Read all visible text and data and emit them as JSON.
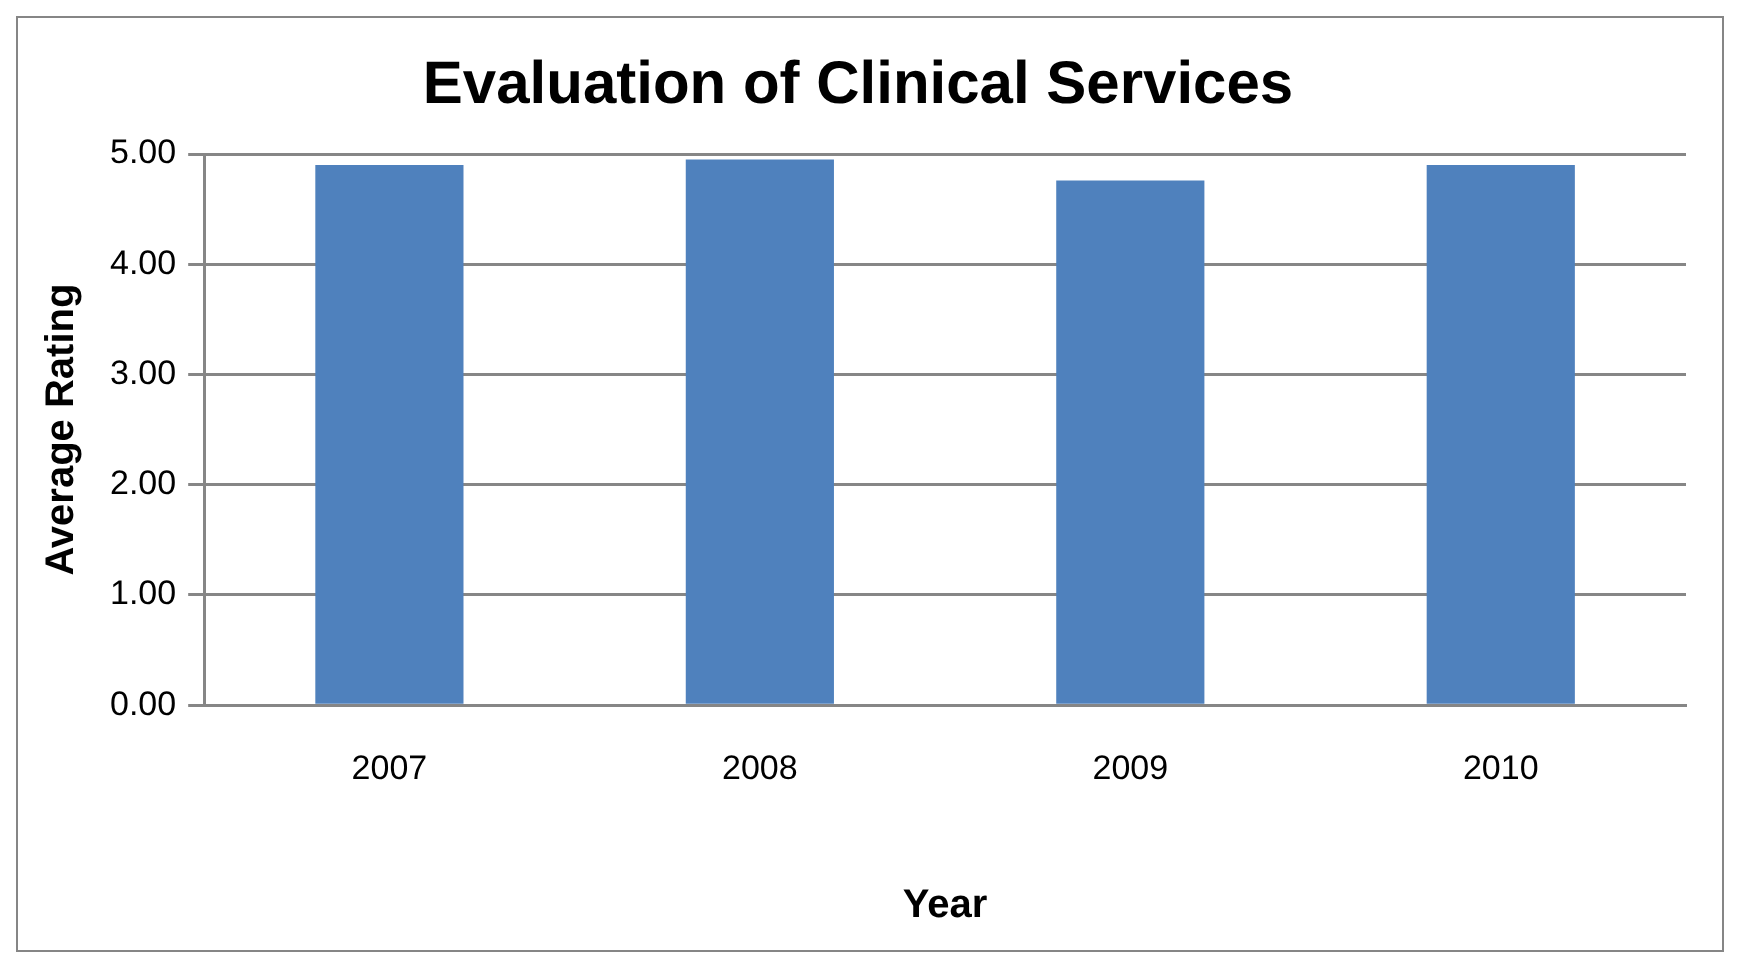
{
  "chart_data": {
    "type": "bar",
    "title": "Evaluation of Clinical Services",
    "xlabel": "Year",
    "ylabel": "Average Rating",
    "categories": [
      "2007",
      "2008",
      "2009",
      "2010"
    ],
    "values": [
      4.9,
      4.95,
      4.76,
      4.9
    ],
    "color": "#4f81bd",
    "ylim": [
      0,
      5
    ],
    "yticks": [
      {
        "value": 0,
        "label": "0.00"
      },
      {
        "value": 1,
        "label": "1.00"
      },
      {
        "value": 2,
        "label": "2.00"
      },
      {
        "value": 3,
        "label": "3.00"
      },
      {
        "value": 4,
        "label": "4.00"
      },
      {
        "value": 5,
        "label": "5.00"
      }
    ],
    "grid": "y",
    "legend": false
  }
}
